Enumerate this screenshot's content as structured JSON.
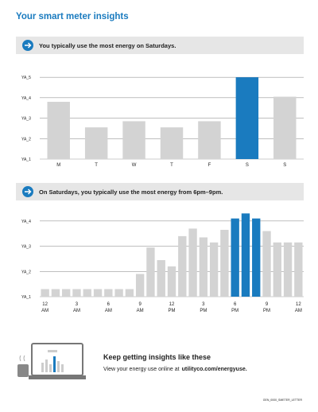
{
  "header": {
    "title": "Your smart meter insights"
  },
  "banners": [
    "You typically use the most energy on Saturdays.",
    "On Saturdays, you typically use the most energy from 6pm–9pm."
  ],
  "chart_data": [
    {
      "type": "bar",
      "categories": [
        "M",
        "T",
        "W",
        "T",
        "F",
        "S",
        "S"
      ],
      "values": [
        3.8,
        2.55,
        2.85,
        2.55,
        2.85,
        5.0,
        4.05
      ],
      "color": "#d3d3d3",
      "highlight_color": "#1a7bbf",
      "highlight": [
        5
      ],
      "ylim": [
        1,
        5.2
      ],
      "yticks": [
        {
          "value": 1,
          "label": "YA_1"
        },
        {
          "value": 2,
          "label": "YA_2"
        },
        {
          "value": 3,
          "label": "YA_3"
        },
        {
          "value": 4,
          "label": "YA_4"
        },
        {
          "value": 5,
          "label": "YA_5"
        }
      ],
      "grid": true
    },
    {
      "type": "bar",
      "categories": [
        "12 AM",
        null,
        null,
        "3 AM",
        null,
        null,
        "6 AM",
        null,
        null,
        "9 AM",
        null,
        null,
        "12 PM",
        null,
        null,
        "3 PM",
        null,
        null,
        "6 PM",
        null,
        null,
        "9 PM",
        null,
        null,
        "12 AM"
      ],
      "values": [
        1.3,
        1.3,
        1.3,
        1.3,
        1.3,
        1.3,
        1.3,
        1.3,
        1.3,
        1.9,
        2.95,
        2.45,
        2.2,
        3.4,
        3.7,
        3.35,
        3.15,
        3.65,
        4.1,
        4.3,
        4.1,
        3.6,
        3.15,
        3.15,
        3.15
      ],
      "color": "#d3d3d3",
      "highlight_color": "#1a7bbf",
      "highlight": [
        18,
        19,
        20
      ],
      "ylim": [
        1,
        4.5
      ],
      "yticks": [
        {
          "value": 1,
          "label": "YA_1"
        },
        {
          "value": 2,
          "label": "YA_2"
        },
        {
          "value": 3,
          "label": "YA_3"
        },
        {
          "value": 4,
          "label": "YA_4"
        }
      ],
      "grid": true
    }
  ],
  "footer": {
    "heading": "Keep getting insights like these",
    "text": "View your energy use online at",
    "link": "utilityco.com/energyuse.",
    "code": "GEN_0000_SMETER_LETTER"
  }
}
